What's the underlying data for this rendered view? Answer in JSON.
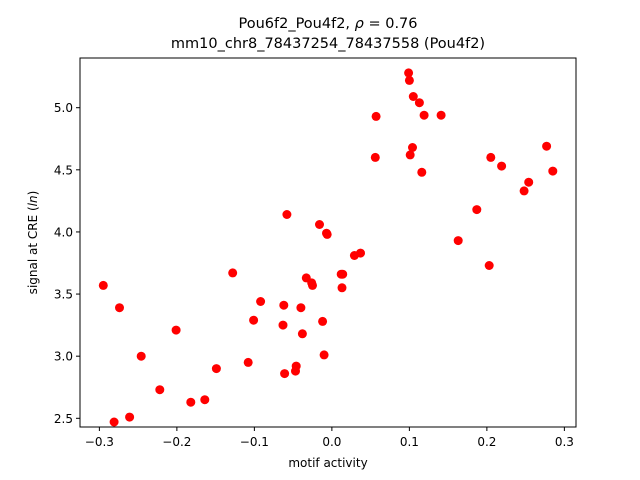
{
  "chart_data": {
    "type": "scatter",
    "title_line1_prefix": "Pou6f2_Pou4f2, ",
    "title_rho_symbol": "ρ",
    "title_rho_value": " = 0.76",
    "title_line2": "mm10_chr8_78437254_78437558 (Pou4f2)",
    "xlabel": "motif activity",
    "ylabel_prefix": "signal at CRE (",
    "ylabel_italic": "ln",
    "ylabel_suffix": ")",
    "xlim": [
      -0.325,
      0.315
    ],
    "ylim": [
      2.43,
      5.4
    ],
    "xticks": [
      -0.3,
      -0.2,
      -0.1,
      0.0,
      0.1,
      0.2,
      0.3
    ],
    "xtick_labels": [
      "−0.3",
      "−0.2",
      "−0.1",
      "0.0",
      "0.1",
      "0.2",
      "0.3"
    ],
    "yticks": [
      2.5,
      3.0,
      3.5,
      4.0,
      4.5,
      5.0
    ],
    "ytick_labels": [
      "2.5",
      "3.0",
      "3.5",
      "4.0",
      "4.5",
      "5.0"
    ],
    "grid": false,
    "legend": "none",
    "marker_color": "#ff0000",
    "points": [
      {
        "x": -0.295,
        "y": 3.57
      },
      {
        "x": -0.274,
        "y": 3.39
      },
      {
        "x": -0.281,
        "y": 2.47
      },
      {
        "x": -0.261,
        "y": 2.51
      },
      {
        "x": -0.246,
        "y": 3.0
      },
      {
        "x": -0.222,
        "y": 2.73
      },
      {
        "x": -0.201,
        "y": 3.21
      },
      {
        "x": -0.182,
        "y": 2.63
      },
      {
        "x": -0.164,
        "y": 2.65
      },
      {
        "x": -0.149,
        "y": 2.9
      },
      {
        "x": -0.128,
        "y": 3.67
      },
      {
        "x": -0.108,
        "y": 2.95
      },
      {
        "x": -0.101,
        "y": 3.29
      },
      {
        "x": -0.092,
        "y": 3.44
      },
      {
        "x": -0.062,
        "y": 3.41
      },
      {
        "x": -0.063,
        "y": 3.25
      },
      {
        "x": -0.061,
        "y": 2.86
      },
      {
        "x": -0.058,
        "y": 4.14
      },
      {
        "x": -0.047,
        "y": 2.88
      },
      {
        "x": -0.046,
        "y": 2.92
      },
      {
        "x": -0.04,
        "y": 3.39
      },
      {
        "x": -0.038,
        "y": 3.18
      },
      {
        "x": -0.033,
        "y": 3.63
      },
      {
        "x": -0.026,
        "y": 3.59
      },
      {
        "x": -0.025,
        "y": 3.57
      },
      {
        "x": -0.016,
        "y": 4.06
      },
      {
        "x": -0.012,
        "y": 3.28
      },
      {
        "x": -0.01,
        "y": 3.01
      },
      {
        "x": -0.007,
        "y": 3.99
      },
      {
        "x": -0.006,
        "y": 3.98
      },
      {
        "x": 0.012,
        "y": 3.66
      },
      {
        "x": 0.014,
        "y": 3.66
      },
      {
        "x": 0.013,
        "y": 3.55
      },
      {
        "x": 0.029,
        "y": 3.81
      },
      {
        "x": 0.037,
        "y": 3.83
      },
      {
        "x": 0.056,
        "y": 4.6
      },
      {
        "x": 0.057,
        "y": 4.93
      },
      {
        "x": 0.099,
        "y": 5.28
      },
      {
        "x": 0.1,
        "y": 5.22
      },
      {
        "x": 0.101,
        "y": 4.62
      },
      {
        "x": 0.104,
        "y": 4.68
      },
      {
        "x": 0.105,
        "y": 5.09
      },
      {
        "x": 0.113,
        "y": 5.04
      },
      {
        "x": 0.116,
        "y": 4.48
      },
      {
        "x": 0.119,
        "y": 4.94
      },
      {
        "x": 0.141,
        "y": 4.94
      },
      {
        "x": 0.163,
        "y": 3.93
      },
      {
        "x": 0.187,
        "y": 4.18
      },
      {
        "x": 0.203,
        "y": 3.73
      },
      {
        "x": 0.205,
        "y": 4.6
      },
      {
        "x": 0.219,
        "y": 4.53
      },
      {
        "x": 0.248,
        "y": 4.33
      },
      {
        "x": 0.254,
        "y": 4.4
      },
      {
        "x": 0.277,
        "y": 4.69
      },
      {
        "x": 0.285,
        "y": 4.49
      }
    ]
  }
}
